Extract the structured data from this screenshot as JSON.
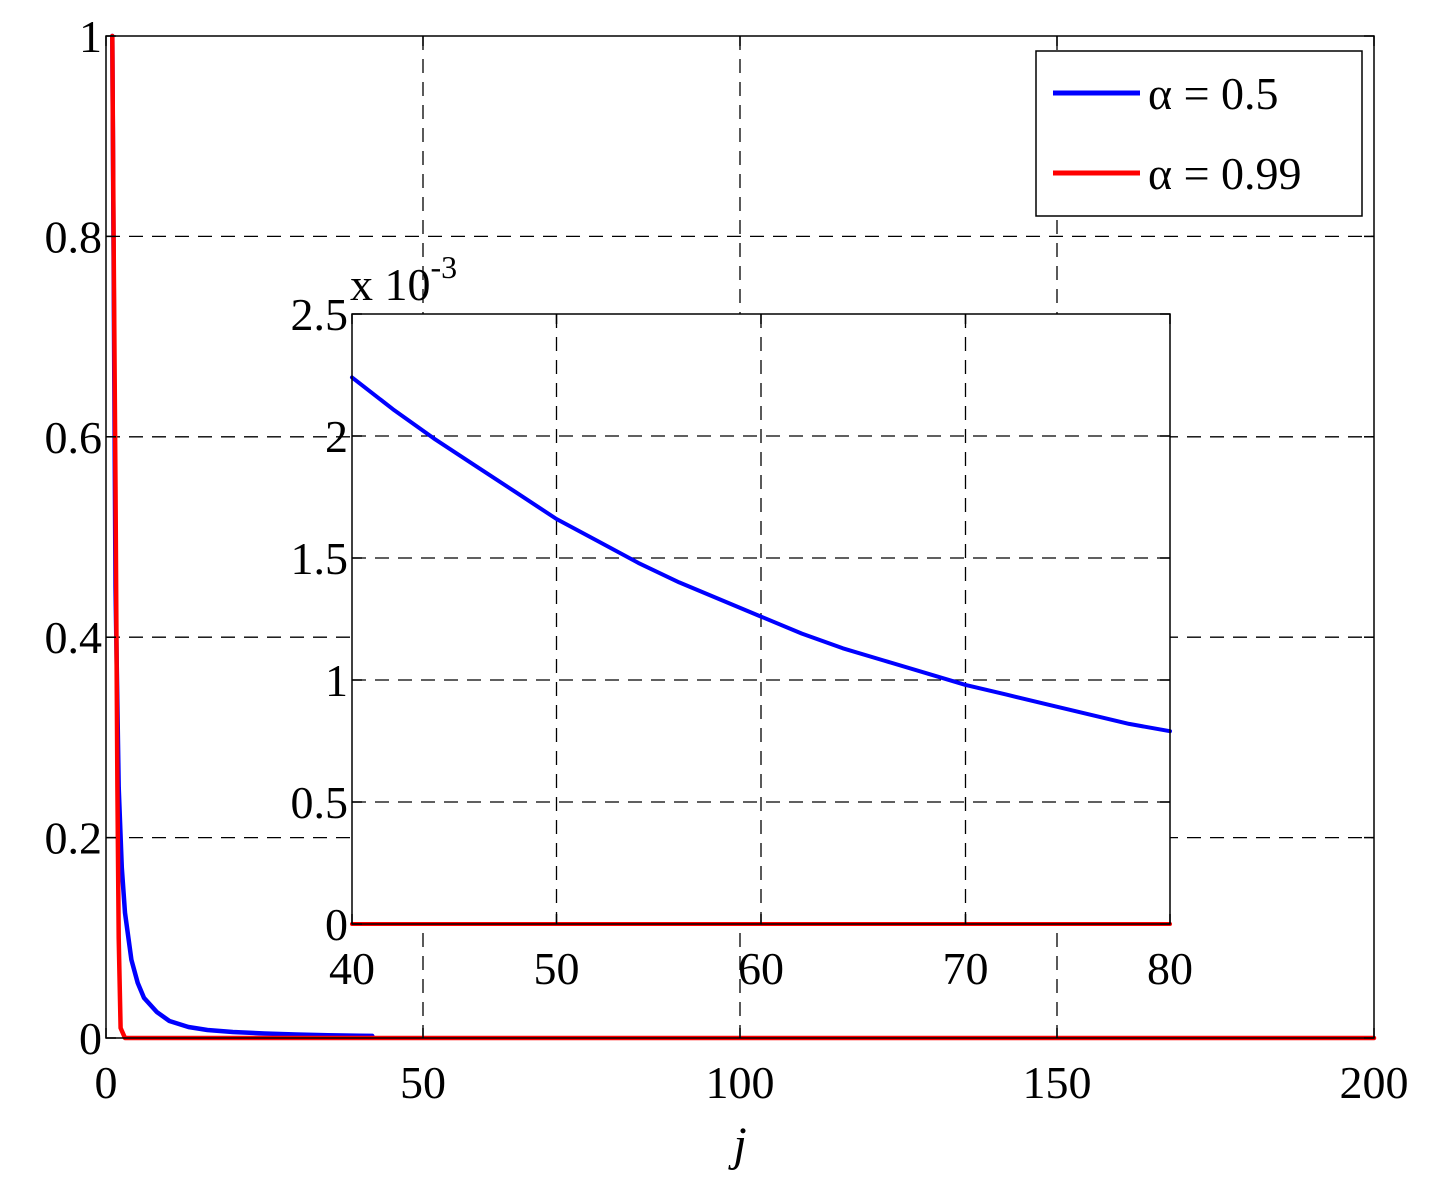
{
  "chart_data": [
    {
      "type": "line",
      "title": "",
      "xlabel": "j",
      "ylabel": "",
      "xlim": [
        0,
        200
      ],
      "ylim": [
        0,
        1
      ],
      "x_ticks": [
        "0",
        "50",
        "100",
        "150",
        "200"
      ],
      "y_ticks": [
        "0",
        "0.2",
        "0.4",
        "0.6",
        "0.8",
        "1"
      ],
      "grid": true,
      "legend_position": "top-right",
      "series": [
        {
          "name": "α = 0.5",
          "color": "#0000ff",
          "x": [
            1,
            1.5,
            2,
            2.5,
            3,
            4,
            5,
            6,
            8,
            10,
            13,
            16,
            20,
            25,
            30,
            35,
            40,
            42
          ],
          "y": [
            1.0,
            0.45,
            0.25,
            0.17,
            0.125,
            0.078,
            0.055,
            0.04,
            0.026,
            0.017,
            0.011,
            0.008,
            0.006,
            0.0045,
            0.0035,
            0.0028,
            0.0022,
            0.0021
          ]
        },
        {
          "name": "α = 0.99",
          "color": "#ff0000",
          "x": [
            1,
            1.2,
            1.5,
            1.8,
            2,
            2.3,
            3,
            10,
            200
          ],
          "y": [
            1.0,
            0.8,
            0.55,
            0.25,
            0.1,
            0.01,
            0.0,
            0.0,
            0.0
          ]
        }
      ]
    },
    {
      "type": "line",
      "title": "",
      "xlabel": "",
      "ylabel": "",
      "xlim": [
        40,
        80
      ],
      "ylim": [
        0,
        0.0025
      ],
      "x_ticks": [
        "40",
        "50",
        "60",
        "70",
        "80"
      ],
      "y_ticks": [
        "0",
        "0.5",
        "1",
        "1.5",
        "2",
        "2.5"
      ],
      "y_multiplier_base": "x 10",
      "y_multiplier_exp": "-3",
      "grid": true,
      "series": [
        {
          "name": "α = 0.5",
          "color": "#0000ff",
          "x": [
            40,
            42,
            44,
            46,
            48,
            50,
            52,
            54,
            56,
            58,
            60,
            62,
            64,
            66,
            68,
            70,
            72,
            74,
            76,
            78,
            80
          ],
          "y": [
            0.00224,
            0.00211,
            0.00199,
            0.00188,
            0.00177,
            0.00166,
            0.00157,
            0.00148,
            0.0014,
            0.00133,
            0.00126,
            0.00119,
            0.00113,
            0.00108,
            0.00103,
            0.00098,
            0.00094,
            0.0009,
            0.00086,
            0.00082,
            0.00079
          ]
        },
        {
          "name": "α = 0.99",
          "color": "#ff0000",
          "x": [
            40,
            80
          ],
          "y": [
            0.0,
            0.0
          ]
        }
      ]
    }
  ]
}
